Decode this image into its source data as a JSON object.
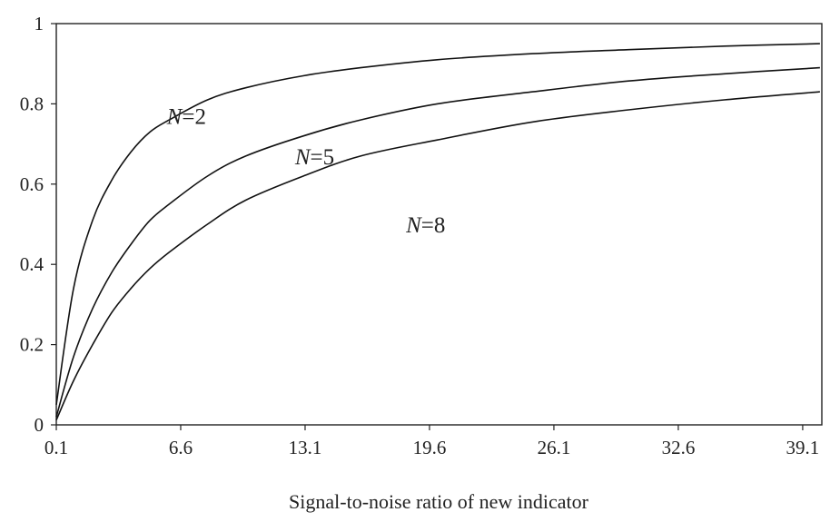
{
  "chart_data": {
    "type": "line",
    "title": "",
    "xlabel": "Signal-to-noise ratio of new indicator",
    "ylabel": "",
    "xlim": [
      0.1,
      40.1
    ],
    "ylim": [
      0,
      1
    ],
    "x_ticks": [
      "0.1",
      "6.6",
      "13.1",
      "19.6",
      "26.1",
      "32.6",
      "39.1"
    ],
    "y_ticks": [
      "0",
      "0.2",
      "0.4",
      "0.6",
      "0.8",
      "1"
    ],
    "x_tick_values": [
      0.1,
      6.6,
      13.1,
      19.6,
      26.1,
      32.6,
      39.1
    ],
    "y_tick_values": [
      0,
      0.2,
      0.4,
      0.6,
      0.8,
      1
    ],
    "grid": false,
    "legend": "none",
    "line_color": "#111111",
    "x": [
      0.1,
      1,
      2,
      3,
      4,
      5,
      6,
      8,
      10,
      13,
      16,
      20,
      25,
      30,
      35,
      40
    ],
    "series": [
      {
        "N": "2",
        "values": [
          0.05,
          0.34,
          0.51,
          0.61,
          0.68,
          0.73,
          0.76,
          0.81,
          0.84,
          0.87,
          0.89,
          0.91,
          0.925,
          0.935,
          0.944,
          0.95
        ]
      },
      {
        "N": "5",
        "values": [
          0.02,
          0.17,
          0.29,
          0.38,
          0.45,
          0.51,
          0.55,
          0.62,
          0.67,
          0.72,
          0.76,
          0.8,
          0.83,
          0.857,
          0.875,
          0.89
        ]
      },
      {
        "N": "8",
        "values": [
          0.012,
          0.11,
          0.2,
          0.28,
          0.34,
          0.39,
          0.43,
          0.5,
          0.56,
          0.62,
          0.67,
          0.71,
          0.755,
          0.785,
          0.81,
          0.83
        ]
      }
    ],
    "annotations": [
      {
        "italic": "N",
        "text": "=2",
        "x": 6.9,
        "y": 0.77
      },
      {
        "italic": "N",
        "text": "=5",
        "x": 13.6,
        "y": 0.67
      },
      {
        "italic": "N",
        "text": "=8",
        "x": 19.4,
        "y": 0.5
      }
    ]
  }
}
